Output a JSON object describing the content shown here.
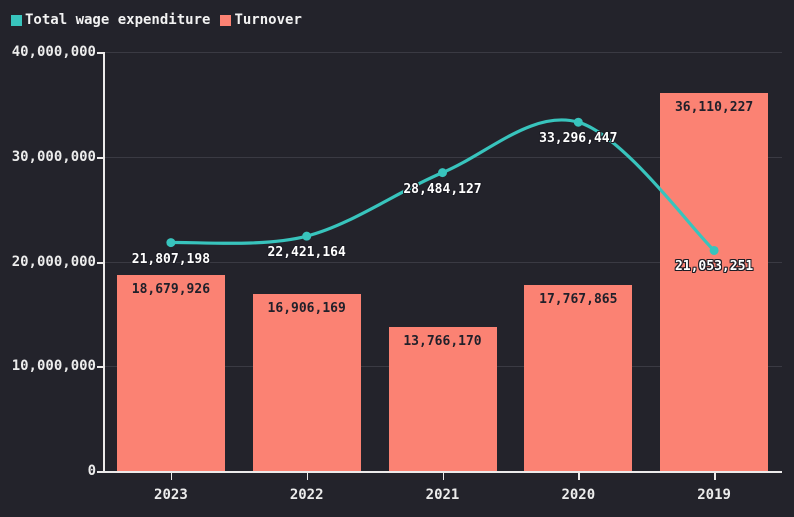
{
  "colors": {
    "background": "#23232b",
    "grid": "#3a3a43",
    "axis": "#eceaea",
    "tick_text": "#ececec",
    "line_series": "#38c4bd",
    "bar_series": "#fb8273",
    "bar_label_text": "#20202a",
    "point_label_text": "#ffffff"
  },
  "legend": {
    "items": [
      {
        "label": "Total wage expenditure",
        "color": "#38c4bd"
      },
      {
        "label": "Turnover",
        "color": "#fb8273"
      }
    ]
  },
  "chart_data": {
    "type": "combo",
    "title": "",
    "xlabel": "",
    "ylabel": "",
    "grid": true,
    "legend_position": "top-left",
    "categories": [
      "2023",
      "2022",
      "2021",
      "2020",
      "2019"
    ],
    "series": [
      {
        "name": "Total wage expenditure",
        "type": "line",
        "color": "#38c4bd",
        "values": [
          21807198,
          22421164,
          28484127,
          33296447,
          21053251
        ],
        "value_labels": [
          "21,807,198",
          "22,421,164",
          "28,484,127",
          "33,296,447",
          "21,053,251"
        ]
      },
      {
        "name": "Turnover",
        "type": "bar",
        "color": "#fb8273",
        "values": [
          18679926,
          16906169,
          13766170,
          17767865,
          36110227
        ],
        "value_labels": [
          "18,679,926",
          "16,906,169",
          "13,766,170",
          "17,767,865",
          "36,110,227"
        ]
      }
    ],
    "ylim": [
      0,
      40000000
    ],
    "yticks": [
      0,
      10000000,
      20000000,
      30000000,
      40000000
    ],
    "ytick_labels": [
      "0",
      "10,000,000",
      "20,000,000",
      "30,000,000",
      "40,000,000"
    ]
  }
}
